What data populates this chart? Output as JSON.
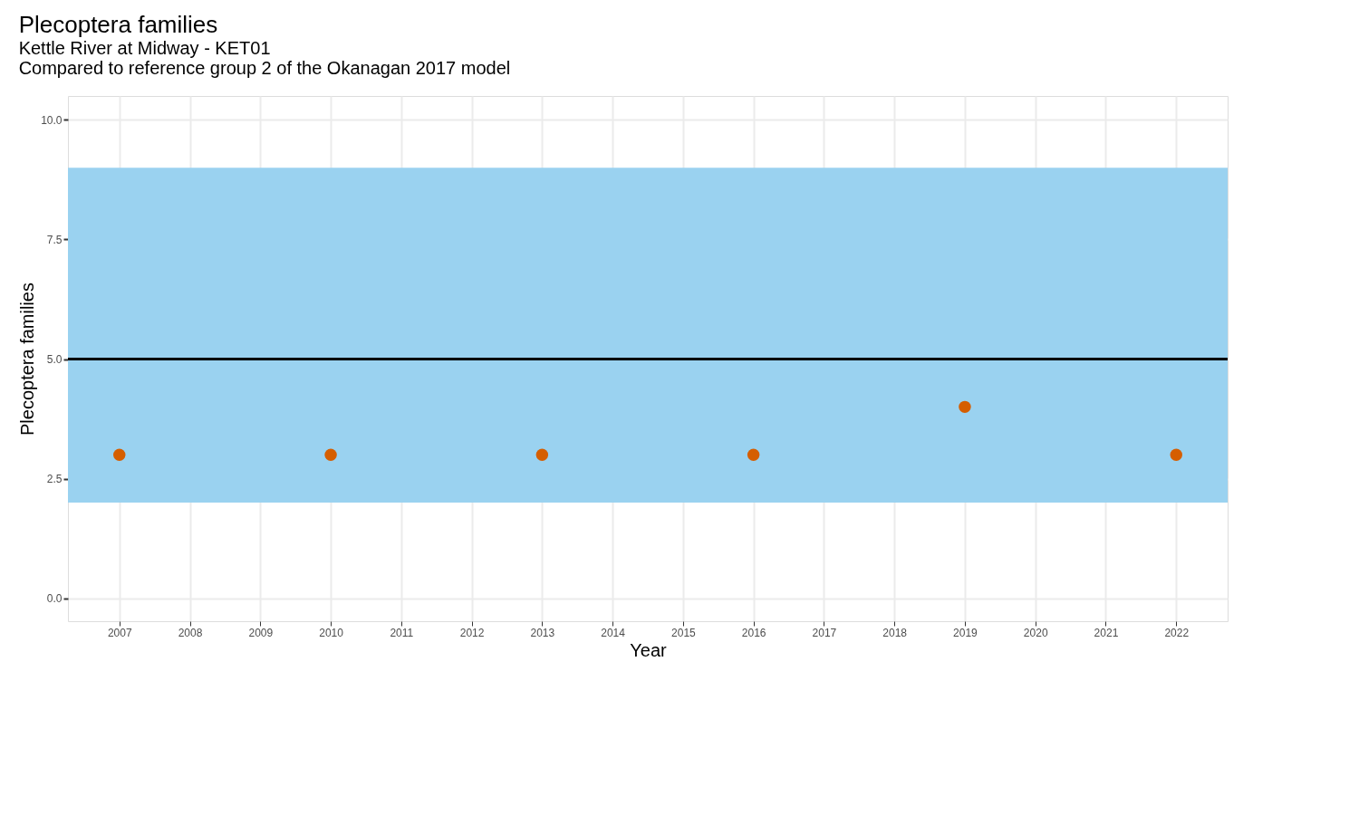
{
  "chart_data": {
    "type": "scatter",
    "title": "Plecoptera families",
    "subtitle": "Kettle River at Midway - KET01\nCompared to reference group 2 of the Okanagan 2017 model",
    "xlabel": "Year",
    "ylabel": "Plecoptera families",
    "x": [
      2007,
      2010,
      2013,
      2016,
      2019,
      2022
    ],
    "series": [
      {
        "color": "#d55e00",
        "values": [
          3,
          3,
          3,
          3,
          4,
          3
        ]
      }
    ],
    "xlim": [
      2006.27,
      2022.73
    ],
    "xticks": [
      2007,
      2008,
      2009,
      2010,
      2011,
      2012,
      2013,
      2014,
      2015,
      2016,
      2017,
      2018,
      2019,
      2020,
      2021,
      2022
    ],
    "ylim": [
      -0.48,
      10.5
    ],
    "yticks": [
      {
        "value": 0,
        "label": "0.0"
      },
      2.5,
      {
        "value": 5,
        "label": "5.0"
      },
      7.5,
      {
        "value": 10,
        "label": "10.0"
      }
    ],
    "bands": [
      {
        "axis": "y",
        "from": 2,
        "to": 9,
        "color": "#9ad2f0"
      }
    ],
    "ref_lines": [
      {
        "axis": "y",
        "value": 5,
        "color": "#000000"
      }
    ],
    "grid": true
  }
}
